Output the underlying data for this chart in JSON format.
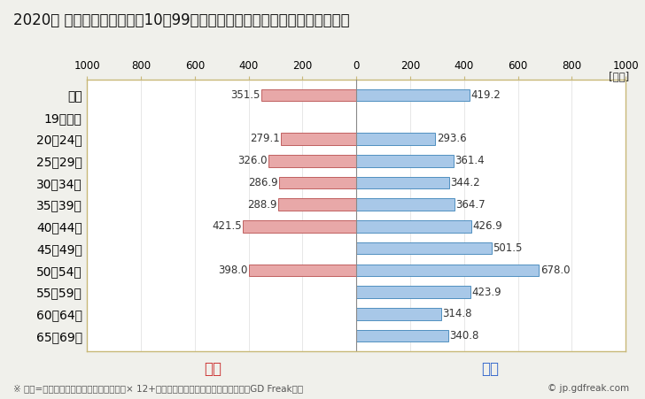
{
  "title": "2020年 民間企業（従業者数10〜99人）フルタイム労働者の男女別平均年収",
  "unit_label": "[万円]",
  "categories": [
    "全体",
    "19歳以下",
    "20〜24歳",
    "25〜29歳",
    "30〜34歳",
    "35〜39歳",
    "40〜44歳",
    "45〜49歳",
    "50〜54歳",
    "55〜59歳",
    "60〜64歳",
    "65〜69歳"
  ],
  "female_values": [
    351.5,
    0,
    279.1,
    326.0,
    286.9,
    288.9,
    421.5,
    0,
    398.0,
    0,
    0,
    0
  ],
  "male_values": [
    419.2,
    0,
    293.6,
    361.4,
    344.2,
    364.7,
    426.9,
    501.5,
    678.0,
    423.9,
    314.8,
    340.8
  ],
  "female_color": "#e8a8a8",
  "male_color": "#a8c8e8",
  "female_border_color": "#c06060",
  "male_border_color": "#5090c0",
  "female_label": "女性",
  "male_label": "男性",
  "female_label_color": "#cc3333",
  "male_label_color": "#3366cc",
  "xlim": 1000,
  "xticks": [
    -1000,
    -800,
    -600,
    -400,
    -200,
    0,
    200,
    400,
    600,
    800,
    1000
  ],
  "xticklabels": [
    "1000",
    "800",
    "600",
    "400",
    "200",
    "0",
    "200",
    "400",
    "600",
    "800",
    "1000"
  ],
  "footnote": "※ 年収=「きまって支給する現金給与額」× 12+「年間賞与その他特別給与額」としてGD Freak推計",
  "copyright": "© jp.gdfreak.com",
  "background_color": "#f0f0eb",
  "plot_bg_color": "#ffffff",
  "border_color": "#c8b878",
  "bar_height": 0.55,
  "title_fontsize": 12,
  "tick_fontsize": 8.5,
  "label_fontsize": 8.5,
  "legend_fontsize": 12,
  "footnote_fontsize": 7.5
}
